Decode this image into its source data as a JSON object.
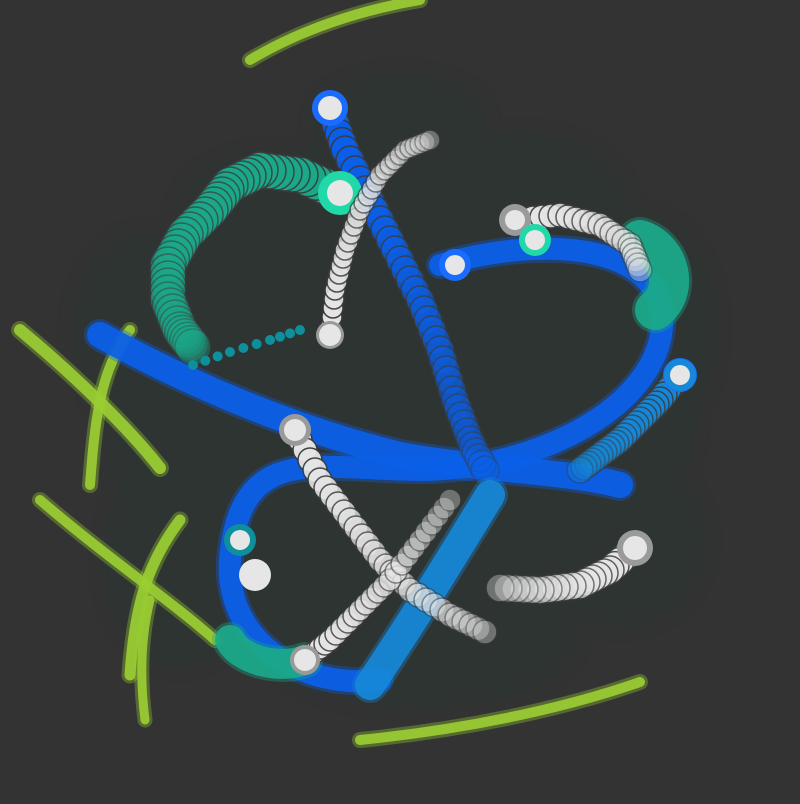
{
  "scene": {
    "background": "#333333",
    "shadow_color": "#2c3533",
    "palette": {
      "lime": "#9acd32",
      "lime_bright": "#b5e03a",
      "blue": "#0b5fe8",
      "blue_bright": "#1a6cff",
      "azure": "#1688d8",
      "teal": "#1ba98a",
      "teal_bright": "#20d8a8",
      "cyan": "#0d8f9c",
      "white": "#e6e6e6",
      "grey": "#8c8c8c"
    },
    "trails": [
      {
        "name": "lime-trail-top",
        "color": "lime",
        "kind": "stroke"
      },
      {
        "name": "lime-trail-left-1",
        "color": "lime",
        "kind": "stroke"
      },
      {
        "name": "lime-trail-left-2",
        "color": "lime",
        "kind": "stroke"
      },
      {
        "name": "lime-trail-left-3",
        "color": "lime",
        "kind": "stroke"
      },
      {
        "name": "lime-trail-bottom-1",
        "color": "lime",
        "kind": "stroke"
      },
      {
        "name": "lime-trail-bottom-2",
        "color": "lime",
        "kind": "stroke"
      },
      {
        "name": "lime-trail-bottom-3",
        "color": "lime",
        "kind": "stroke"
      },
      {
        "name": "blue-ring-large",
        "color": "blue",
        "kind": "stroke"
      },
      {
        "name": "blue-trail-left",
        "color": "blue",
        "kind": "stroke"
      },
      {
        "name": "blue-trail-vertical",
        "color": "blue",
        "kind": "beads"
      },
      {
        "name": "blue-trail-right",
        "color": "azure",
        "kind": "beads"
      },
      {
        "name": "blue-trail-lower",
        "color": "azure",
        "kind": "stroke"
      },
      {
        "name": "teal-trail-top-left",
        "color": "teal",
        "kind": "beads"
      },
      {
        "name": "teal-trail-top-right",
        "color": "teal",
        "kind": "stroke"
      },
      {
        "name": "teal-trail-bottom",
        "color": "teal",
        "kind": "stroke"
      },
      {
        "name": "cyan-dotted-trail",
        "color": "cyan",
        "kind": "dots"
      },
      {
        "name": "white-trail-vertical",
        "color": "white",
        "kind": "beads"
      },
      {
        "name": "white-trail-diagonal",
        "color": "white",
        "kind": "beads"
      },
      {
        "name": "white-trail-top",
        "color": "white",
        "kind": "beads"
      },
      {
        "name": "white-trail-cross",
        "color": "white",
        "kind": "beads"
      },
      {
        "name": "white-trail-lower-right",
        "color": "white",
        "kind": "beads"
      }
    ]
  }
}
